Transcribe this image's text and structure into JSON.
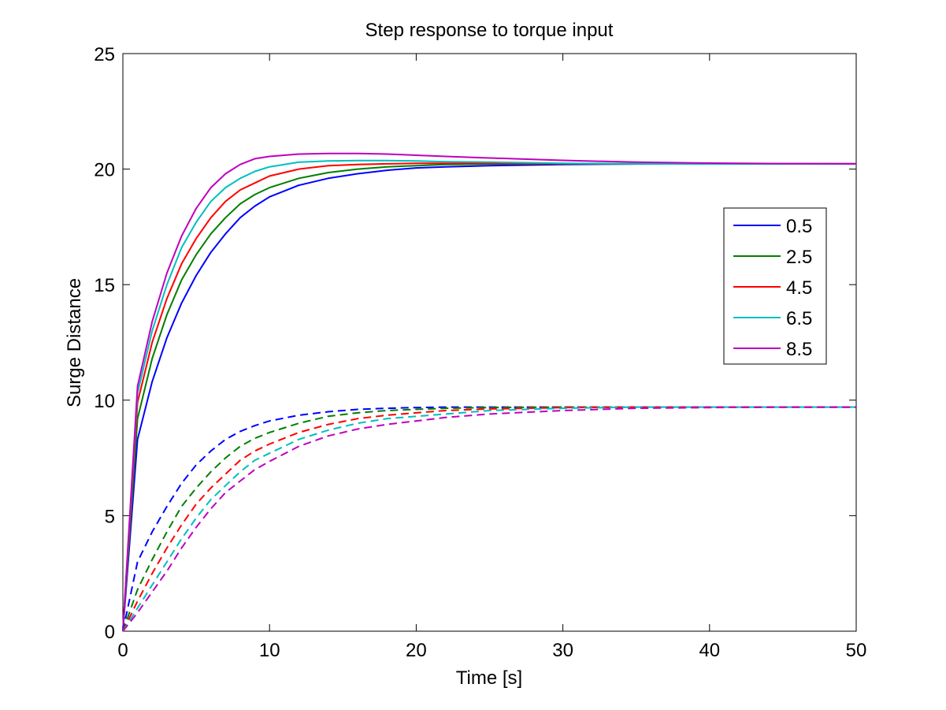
{
  "chart_data": {
    "type": "line",
    "title": "Step response to torque input",
    "xlabel": "Time [s]",
    "ylabel": "Surge Distance",
    "xlim": [
      0,
      50
    ],
    "ylim": [
      0,
      25
    ],
    "xticks": [
      "0",
      "10",
      "20",
      "30",
      "40",
      "50"
    ],
    "yticks": [
      "0",
      "5",
      "10",
      "15",
      "20",
      "25"
    ],
    "grid": false,
    "legend_position": "right",
    "x": [
      0,
      1,
      2,
      3,
      4,
      5,
      6,
      7,
      8,
      9,
      10,
      12,
      14,
      16,
      18,
      20,
      22,
      25,
      30,
      35,
      40,
      45,
      50
    ],
    "series": [
      {
        "name": "0.5",
        "color": "#0000ff",
        "style": "solid",
        "values": [
          0,
          8.3,
          10.8,
          12.7,
          14.2,
          15.4,
          16.4,
          17.2,
          17.9,
          18.4,
          18.8,
          19.3,
          19.6,
          19.8,
          19.95,
          20.05,
          20.1,
          20.15,
          20.2,
          20.22,
          20.23,
          20.23,
          20.23
        ]
      },
      {
        "name": "2.5",
        "color": "#007f00",
        "style": "solid",
        "values": [
          0,
          9.2,
          11.8,
          13.7,
          15.2,
          16.3,
          17.2,
          17.9,
          18.5,
          18.9,
          19.2,
          19.6,
          19.85,
          20.0,
          20.1,
          20.15,
          20.2,
          20.22,
          20.23,
          20.23,
          20.23,
          20.23,
          20.23
        ]
      },
      {
        "name": "4.5",
        "color": "#ff0000",
        "style": "solid",
        "values": [
          0,
          9.9,
          12.5,
          14.4,
          15.9,
          17.0,
          17.9,
          18.6,
          19.1,
          19.4,
          19.7,
          20.0,
          20.15,
          20.2,
          20.23,
          20.25,
          20.25,
          20.25,
          20.24,
          20.23,
          20.23,
          20.23,
          20.23
        ]
      },
      {
        "name": "6.5",
        "color": "#00bfbf",
        "style": "solid",
        "values": [
          0,
          10.3,
          13.0,
          15.0,
          16.6,
          17.7,
          18.6,
          19.2,
          19.6,
          19.9,
          20.1,
          20.3,
          20.35,
          20.37,
          20.37,
          20.35,
          20.32,
          20.3,
          20.25,
          20.23,
          20.22,
          20.22,
          20.22
        ]
      },
      {
        "name": "8.5",
        "color": "#bf00bf",
        "style": "solid",
        "values": [
          0,
          10.6,
          13.4,
          15.5,
          17.1,
          18.3,
          19.2,
          19.8,
          20.2,
          20.45,
          20.55,
          20.65,
          20.68,
          20.68,
          20.65,
          20.6,
          20.55,
          20.48,
          20.38,
          20.3,
          20.26,
          20.24,
          20.23
        ]
      },
      {
        "color": "#0000ff",
        "style": "dashed",
        "values": [
          0,
          3.0,
          4.3,
          5.4,
          6.4,
          7.2,
          7.8,
          8.3,
          8.65,
          8.9,
          9.1,
          9.35,
          9.5,
          9.6,
          9.65,
          9.68,
          9.7,
          9.7,
          9.7,
          9.7,
          9.7,
          9.7,
          9.7
        ]
      },
      {
        "color": "#007f00",
        "style": "dashed",
        "values": [
          0,
          1.8,
          3.1,
          4.3,
          5.4,
          6.2,
          6.9,
          7.5,
          8.0,
          8.35,
          8.6,
          9.0,
          9.3,
          9.45,
          9.55,
          9.6,
          9.65,
          9.68,
          9.7,
          9.7,
          9.7,
          9.7,
          9.7
        ]
      },
      {
        "color": "#ff0000",
        "style": "dashed",
        "values": [
          0,
          1.3,
          2.5,
          3.6,
          4.6,
          5.5,
          6.2,
          6.8,
          7.4,
          7.8,
          8.1,
          8.6,
          8.95,
          9.2,
          9.35,
          9.45,
          9.55,
          9.62,
          9.68,
          9.7,
          9.7,
          9.7,
          9.7
        ]
      },
      {
        "color": "#00bfbf",
        "style": "dashed",
        "values": [
          0,
          1.0,
          2.0,
          3.0,
          4.0,
          4.9,
          5.7,
          6.3,
          6.9,
          7.4,
          7.7,
          8.3,
          8.7,
          9.0,
          9.2,
          9.3,
          9.4,
          9.55,
          9.65,
          9.7,
          9.7,
          9.7,
          9.7
        ]
      },
      {
        "color": "#bf00bf",
        "style": "dashed",
        "values": [
          0,
          0.8,
          1.7,
          2.6,
          3.6,
          4.5,
          5.3,
          6.0,
          6.5,
          7.0,
          7.35,
          8.0,
          8.45,
          8.75,
          8.95,
          9.1,
          9.25,
          9.4,
          9.55,
          9.65,
          9.68,
          9.7,
          9.7
        ]
      }
    ]
  }
}
